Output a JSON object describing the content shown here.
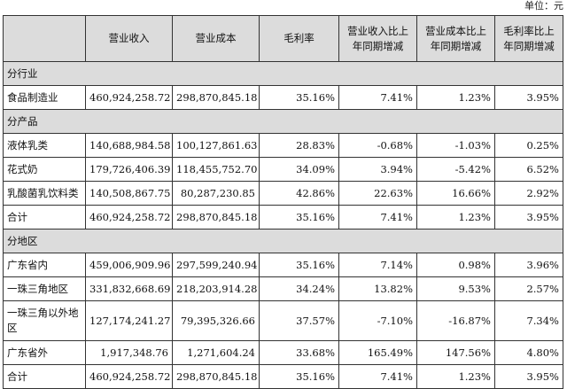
{
  "unit_label": "单位：元",
  "headers": [
    "",
    "营业收入",
    "营业成本",
    "毛利率",
    "营业收入比上年同期增减",
    "营业成本比上年同期增减",
    "毛利率比上年同期增减"
  ],
  "sections": [
    {
      "title": "分行业",
      "rows": [
        {
          "name": "食品制造业",
          "revenue": "460,924,258.72",
          "cost": "298,870,845.18",
          "margin": "35.16%",
          "rev_change": "7.41%",
          "cost_change": "1.23%",
          "margin_change": "3.95%"
        }
      ]
    },
    {
      "title": "分产品",
      "rows": [
        {
          "name": "液体乳类",
          "revenue": "140,688,984.58",
          "cost": "100,127,861.63",
          "margin": "28.83%",
          "rev_change": "-0.68%",
          "cost_change": "-1.03%",
          "margin_change": "0.25%"
        },
        {
          "name": "花式奶",
          "revenue": "179,726,406.39",
          "cost": "118,455,752.70",
          "margin": "34.09%",
          "rev_change": "3.94%",
          "cost_change": "-5.42%",
          "margin_change": "6.52%"
        },
        {
          "name": "乳酸菌乳饮料类",
          "revenue": "140,508,867.75",
          "cost": "80,287,230.85",
          "margin": "42.86%",
          "rev_change": "22.63%",
          "cost_change": "16.66%",
          "margin_change": "2.92%"
        },
        {
          "name": "合计",
          "revenue": "460,924,258.72",
          "cost": "298,870,845.18",
          "margin": "35.16%",
          "rev_change": "7.41%",
          "cost_change": "1.23%",
          "margin_change": "3.95%"
        }
      ]
    },
    {
      "title": "分地区",
      "rows": [
        {
          "name": "广东省内",
          "revenue": "459,006,909.96",
          "cost": "297,599,240.94",
          "margin": "35.16%",
          "rev_change": "7.14%",
          "cost_change": "0.98%",
          "margin_change": "3.96%"
        },
        {
          "name": "一珠三角地区",
          "revenue": "331,832,668.69",
          "cost": "218,203,914.28",
          "margin": "34.24%",
          "rev_change": "13.82%",
          "cost_change": "9.53%",
          "margin_change": "2.57%"
        },
        {
          "name": "一珠三角以外地区",
          "revenue": "127,174,241.27",
          "cost": "79,395,326.66",
          "margin": "37.57%",
          "rev_change": "-7.10%",
          "cost_change": "-16.87%",
          "margin_change": "7.34%",
          "tall": true
        },
        {
          "name": "广东省外",
          "revenue": "1,917,348.76",
          "cost": "1,271,604.24",
          "margin": "33.68%",
          "rev_change": "165.49%",
          "cost_change": "147.56%",
          "margin_change": "4.80%"
        },
        {
          "name": "合计",
          "revenue": "460,924,258.72",
          "cost": "298,870,845.18",
          "margin": "35.16%",
          "rev_change": "7.41%",
          "cost_change": "1.23%",
          "margin_change": "3.95%"
        }
      ]
    }
  ]
}
